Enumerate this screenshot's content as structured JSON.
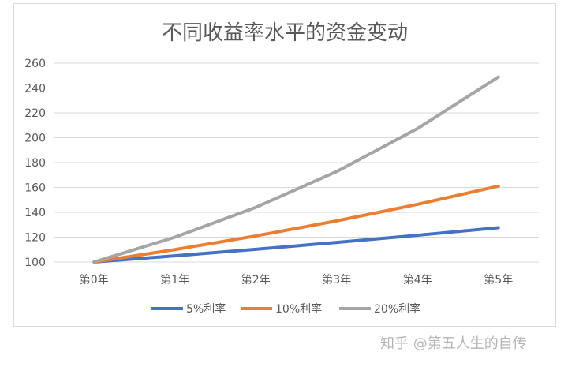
{
  "chart_data": {
    "type": "line",
    "title": "不同收益率水平的资金变动",
    "categories": [
      "第0年",
      "第1年",
      "第2年",
      "第3年",
      "第4年",
      "第5年"
    ],
    "ylim": [
      100,
      260
    ],
    "yticks": [
      100,
      120,
      140,
      160,
      180,
      200,
      220,
      240,
      260
    ],
    "grid": true,
    "legend_position": "bottom",
    "series": [
      {
        "name": "5%利率",
        "color": "#4472c4",
        "values": [
          100,
          105,
          110.25,
          115.76,
          121.55,
          127.63
        ]
      },
      {
        "name": "10%利率",
        "color": "#ed7d31",
        "values": [
          100,
          110,
          121,
          133.1,
          146.41,
          161.05
        ]
      },
      {
        "name": "20%利率",
        "color": "#a5a5a5",
        "values": [
          100,
          120,
          144,
          172.8,
          207.36,
          248.83
        ]
      }
    ]
  },
  "watermark": "知乎 @第五人生的自传"
}
